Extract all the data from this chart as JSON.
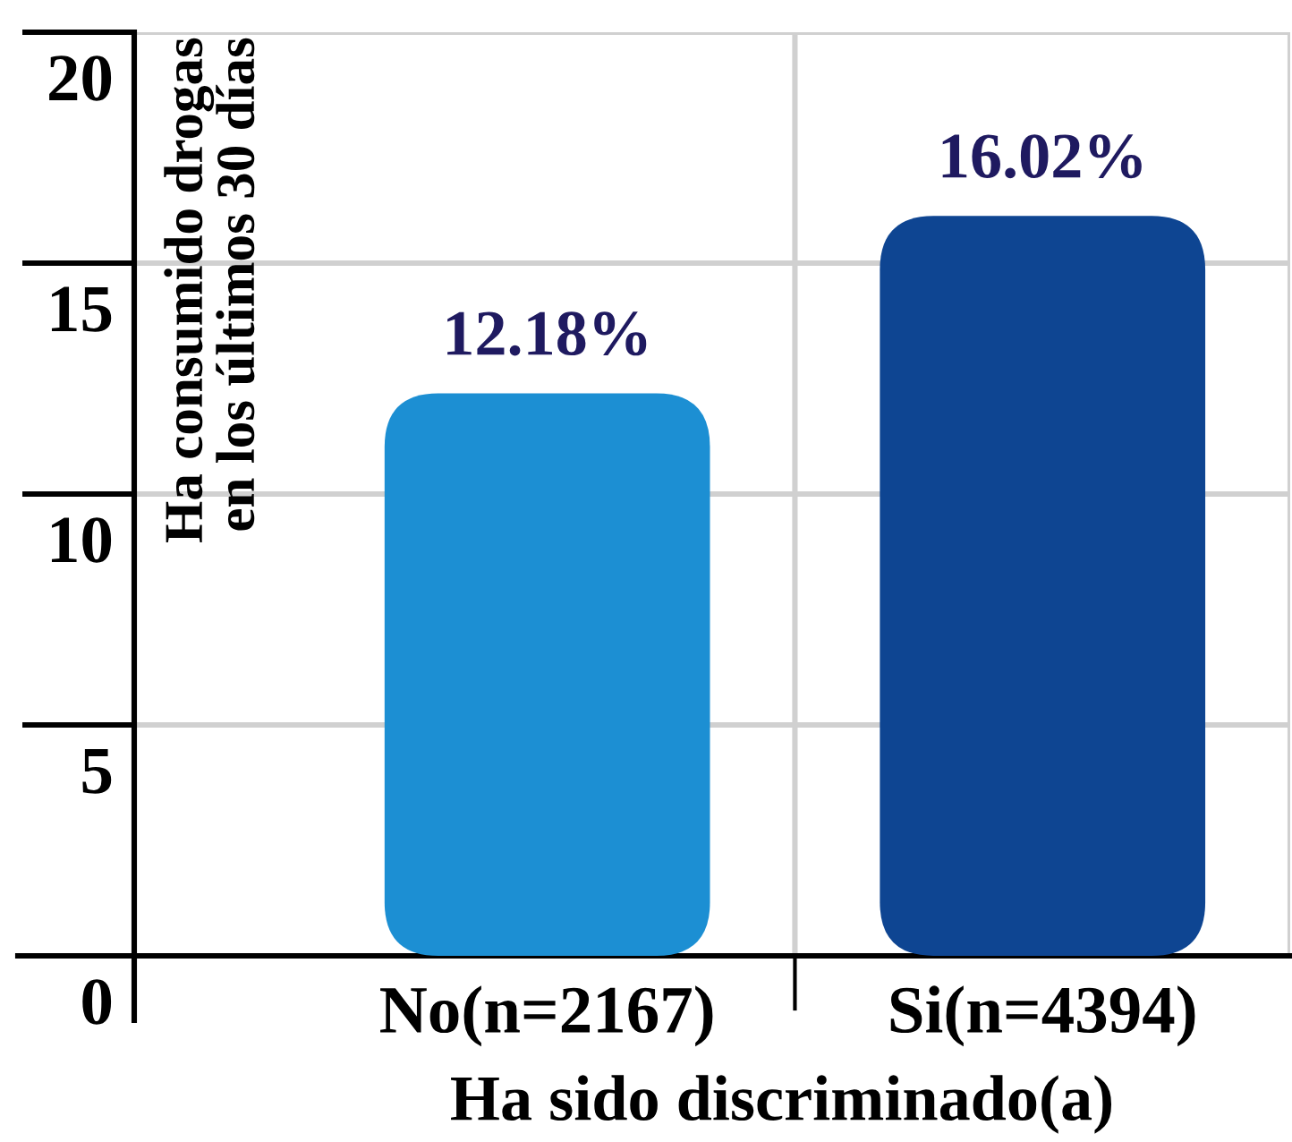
{
  "chart_data": {
    "type": "bar",
    "categories": [
      "No(n=2167)",
      "Si(n=4394)"
    ],
    "values": [
      12.18,
      16.02
    ],
    "colors": [
      "#1c8fd3",
      "#0e4592"
    ],
    "value_labels": [
      "12.18%",
      "16.02%"
    ],
    "xlabel": "Ha sido discriminado(a)",
    "ylabel": "Ha consumido drogas\nen los últimos 30 días",
    "ylim": [
      0,
      20
    ],
    "yticks": [
      0,
      5,
      10,
      15,
      20
    ],
    "grid": true
  }
}
